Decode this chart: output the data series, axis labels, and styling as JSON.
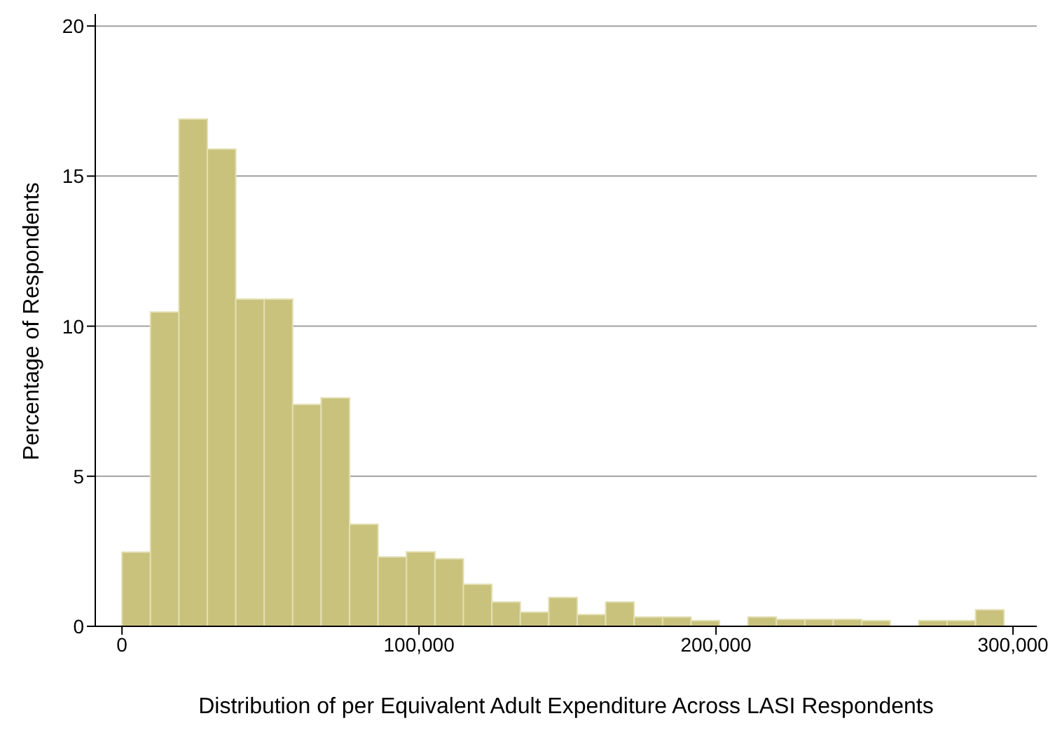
{
  "chart_data": {
    "type": "histogram",
    "xlabel": "Distribution of per Equivalent Adult Expenditure Across LASI Respondents",
    "ylabel": "Percentage of Respondents",
    "bins": [
      0,
      9580,
      19160,
      28740,
      38320,
      47900,
      57480,
      67060,
      76640,
      86220,
      95800,
      105380,
      114960,
      124540,
      134120,
      143700,
      153280,
      162860,
      172440,
      182020,
      191600,
      201180,
      210760,
      220340,
      229920,
      239500,
      249080,
      258660,
      268240,
      277820,
      287400,
      296980
    ],
    "values": [
      2.47,
      10.47,
      16.9,
      15.9,
      10.9,
      10.9,
      7.39,
      7.61,
      3.4,
      2.31,
      2.48,
      2.25,
      1.4,
      0.81,
      0.47,
      0.96,
      0.39,
      0.81,
      0.31,
      0.31,
      0.19,
      0,
      0.31,
      0.23,
      0.23,
      0.23,
      0.19,
      0,
      0.19,
      0.19,
      0.55
    ],
    "color": "#c9c27c",
    "xlim": [
      -9000,
      308000
    ],
    "xticks": [
      {
        "value": 0,
        "label": "0"
      },
      {
        "value": 100000,
        "label": "100,000"
      },
      {
        "value": 200000,
        "label": "200,000"
      },
      {
        "value": 300000,
        "label": "300,000"
      }
    ],
    "ylim": [
      0,
      20.4
    ],
    "yticks": [
      0,
      5,
      10,
      15,
      20
    ],
    "grid": "y"
  }
}
